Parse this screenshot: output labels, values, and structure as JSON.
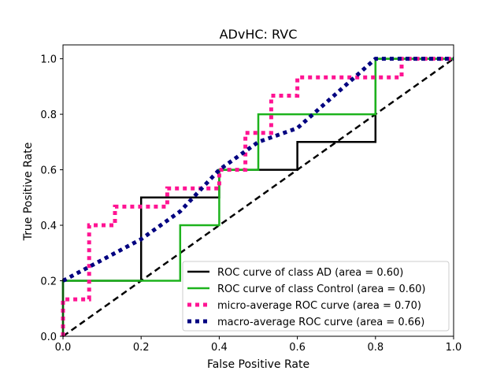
{
  "chart_data": {
    "type": "line",
    "title": "ADvHC: RVC",
    "xlabel": "False Positive Rate",
    "ylabel": "True Positive Rate",
    "xlim": [
      0,
      1
    ],
    "ylim": [
      0,
      1.05
    ],
    "x_ticks": [
      "0.0",
      "0.2",
      "0.4",
      "0.6",
      "0.8",
      "1.0"
    ],
    "y_ticks": [
      "0.0",
      "0.2",
      "0.4",
      "0.6",
      "0.8",
      "1.0"
    ],
    "grid": false,
    "legend_position": "lower right",
    "series": [
      {
        "name": "ROC curve of class  AD (area = 0.60)",
        "color": "#000000",
        "style": "solid",
        "points": [
          [
            0,
            0
          ],
          [
            0,
            0.2
          ],
          [
            0.2,
            0.2
          ],
          [
            0.2,
            0.5
          ],
          [
            0.4,
            0.5
          ],
          [
            0.4,
            0.6
          ],
          [
            0.6,
            0.6
          ],
          [
            0.6,
            0.7
          ],
          [
            0.8,
            0.7
          ],
          [
            0.8,
            1.0
          ],
          [
            1.0,
            1.0
          ]
        ]
      },
      {
        "name": "ROC curve of class  Control (area = 0.60)",
        "color": "#1db31d",
        "style": "solid",
        "points": [
          [
            0,
            0
          ],
          [
            0,
            0.2
          ],
          [
            0.3,
            0.2
          ],
          [
            0.3,
            0.4
          ],
          [
            0.4,
            0.4
          ],
          [
            0.4,
            0.6
          ],
          [
            0.5,
            0.6
          ],
          [
            0.5,
            0.8
          ],
          [
            0.8,
            0.8
          ],
          [
            0.8,
            1.0
          ],
          [
            1.0,
            1.0
          ]
        ]
      },
      {
        "name": "micro-average ROC curve (area = 0.70)",
        "color": "#ff1493",
        "style": "dotted",
        "points": [
          [
            0,
            0
          ],
          [
            0,
            0.133
          ],
          [
            0.067,
            0.133
          ],
          [
            0.067,
            0.267
          ],
          [
            0.067,
            0.4
          ],
          [
            0.133,
            0.4
          ],
          [
            0.133,
            0.467
          ],
          [
            0.267,
            0.467
          ],
          [
            0.267,
            0.533
          ],
          [
            0.4,
            0.533
          ],
          [
            0.4,
            0.6
          ],
          [
            0.467,
            0.6
          ],
          [
            0.467,
            0.667
          ],
          [
            0.467,
            0.733
          ],
          [
            0.533,
            0.733
          ],
          [
            0.533,
            0.8
          ],
          [
            0.533,
            0.867
          ],
          [
            0.6,
            0.867
          ],
          [
            0.6,
            0.933
          ],
          [
            0.867,
            0.933
          ],
          [
            0.867,
            1.0
          ],
          [
            1.0,
            1.0
          ]
        ]
      },
      {
        "name": "macro-average ROC curve (area = 0.66)",
        "color": "#000080",
        "style": "dotted",
        "points": [
          [
            0,
            0.2
          ],
          [
            0.2,
            0.35
          ],
          [
            0.3,
            0.45
          ],
          [
            0.4,
            0.6
          ],
          [
            0.5,
            0.7
          ],
          [
            0.6,
            0.75
          ],
          [
            0.8,
            1.0
          ],
          [
            1.0,
            1.0
          ]
        ]
      }
    ],
    "reference_line": {
      "color": "#000000",
      "style": "dashed",
      "points": [
        [
          0,
          0
        ],
        [
          1,
          1
        ]
      ]
    }
  }
}
